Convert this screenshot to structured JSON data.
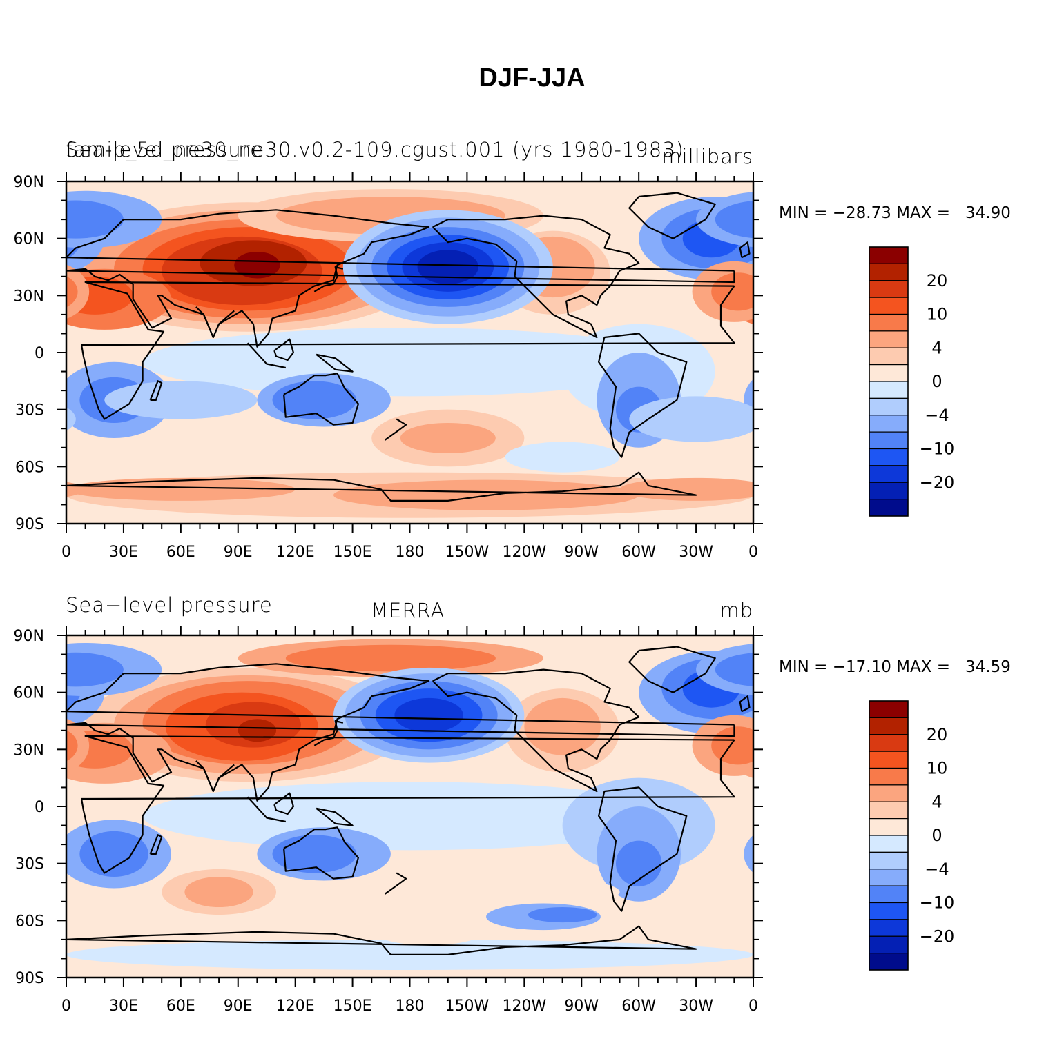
{
  "title": "DJF-JJA",
  "panels": [
    {
      "left_title": "Sea-level pressure",
      "center_title": "famip_5d_ne30_ne30.v0.2-109.cgust.001 (yrs 1980-1983)",
      "units": "millibars",
      "min_label": "MIN = −28.73",
      "max_label": "MAX =   34.90",
      "min": -28.73,
      "max": 34.9
    },
    {
      "left_title": "Sea−level pressure",
      "center_title": "MERRA",
      "units": "mb",
      "min_label": "MIN = −17.10",
      "max_label": "MAX =   34.59",
      "min": -17.1,
      "max": 34.59
    }
  ],
  "lon_tick_labels": [
    "0",
    "30E",
    "60E",
    "90E",
    "120E",
    "150E",
    "180",
    "150W",
    "120W",
    "90W",
    "60W",
    "30W",
    "0"
  ],
  "lat_tick_labels": [
    "90N",
    "60N",
    "30N",
    "0",
    "30S",
    "60S",
    "90S"
  ],
  "colorbar": {
    "labels": [
      "20",
      "10",
      "4",
      "0",
      "−4",
      "−10",
      "−20"
    ],
    "colors": [
      "#8b0000",
      "#b22200",
      "#d93a12",
      "#f4541f",
      "#f87a4a",
      "#fba57f",
      "#fdcbb0",
      "#fee8d8",
      "#d5e9ff",
      "#b0cdfd",
      "#86acfb",
      "#5283f7",
      "#1e56f3",
      "#0d38d9",
      "#0420b4",
      "#000c8c"
    ]
  }
}
